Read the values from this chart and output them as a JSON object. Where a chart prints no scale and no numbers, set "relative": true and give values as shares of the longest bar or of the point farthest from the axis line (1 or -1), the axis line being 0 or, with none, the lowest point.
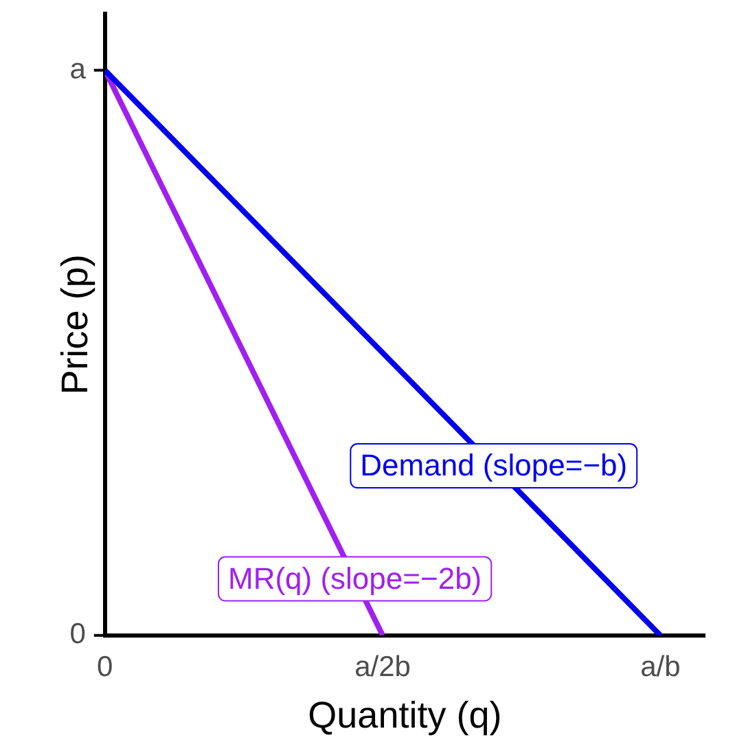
{
  "chart_data": {
    "type": "line",
    "xlabel": "Quantity (q)",
    "ylabel": "Price (p)",
    "relative": true,
    "categories": [
      "0",
      "a/2b",
      "a/b"
    ],
    "series": [
      {
        "name": "Demand (slope=−b)",
        "color": "#0000ee",
        "values": [
          1,
          0.5,
          0
        ]
      },
      {
        "name": "MR(q) (slope=−2b)",
        "color": "#a020f0",
        "values": [
          1,
          0,
          null
        ]
      }
    ],
    "annotations": [
      "0",
      "a"
    ],
    "grid": false,
    "legend": false,
    "marker": "none",
    "line_style": "solid"
  }
}
